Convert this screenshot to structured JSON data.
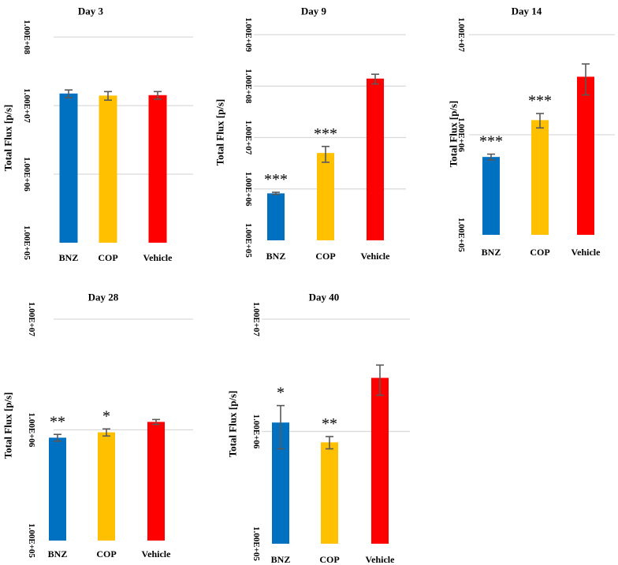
{
  "chart_data": [
    {
      "type": "bar",
      "title": "Day 3",
      "ylabel": "Total Flux [p/s]",
      "yscale": "log",
      "ylim": [
        100000,
        100000000
      ],
      "yticks": [
        "1.00E+05",
        "1.00E+06",
        "1.00E+07",
        "1.00E+08"
      ],
      "categories": [
        "BNZ",
        "COP",
        "Vehicle"
      ],
      "values": [
        15000000,
        14000000,
        14200000
      ],
      "errors": [
        1900000,
        2000000,
        1800000
      ],
      "colors": [
        "#0070c0",
        "#ffc000",
        "#ff0000"
      ],
      "annotations": [
        "",
        "",
        ""
      ]
    },
    {
      "type": "bar",
      "title": "Day 9",
      "ylabel": "Total Flux [p/s]",
      "yscale": "log",
      "ylim": [
        100000,
        1000000000
      ],
      "yticks": [
        "1.00E+05",
        "1.00E+06",
        "1.00E+07",
        "1.00E+08",
        "1.00E+09"
      ],
      "categories": [
        "BNZ",
        "COP",
        "Vehicle"
      ],
      "values": [
        820000,
        5000000,
        140000000
      ],
      "errors": [
        40000,
        1700000,
        30000000
      ],
      "colors": [
        "#0070c0",
        "#ffc000",
        "#ff0000"
      ],
      "annotations": [
        "***",
        "***",
        ""
      ]
    },
    {
      "type": "bar",
      "title": "Day 14",
      "ylabel": "Total Flux [p/s]",
      "yscale": "log",
      "ylim": [
        100000,
        10000000
      ],
      "yticks": [
        "1.00E+05",
        "1.00E+06",
        "1.00E+07"
      ],
      "categories": [
        "BNZ",
        "COP",
        "Vehicle"
      ],
      "values": [
        600000,
        1400000,
        3800000
      ],
      "errors": [
        40000,
        230000,
        1300000
      ],
      "colors": [
        "#0070c0",
        "#ffc000",
        "#ff0000"
      ],
      "annotations": [
        "***",
        "***",
        ""
      ]
    },
    {
      "type": "bar",
      "title": "Day 28",
      "ylabel": "Total Flux [p/s]",
      "yscale": "log",
      "ylim": [
        100000,
        10000000
      ],
      "yticks": [
        "1.00E+05",
        "1.00E+06",
        "1.00E+07"
      ],
      "categories": [
        "BNZ",
        "COP",
        "Vehicle"
      ],
      "values": [
        850000,
        950000,
        1180000
      ],
      "errors": [
        60000,
        70000,
        60000
      ],
      "colors": [
        "#0070c0",
        "#ffc000",
        "#ff0000"
      ],
      "annotations": [
        "**",
        "*",
        ""
      ]
    },
    {
      "type": "bar",
      "title": "Day 40",
      "ylabel": "Total Flux [p/s]",
      "yscale": "log",
      "ylim": [
        100000,
        10000000
      ],
      "yticks": [
        "1.00E+05",
        "1.00E+06",
        "1.00E+07"
      ],
      "categories": [
        "BNZ",
        "COP",
        "Vehicle"
      ],
      "values": [
        1200000,
        800000,
        3000000
      ],
      "errors": [
        500000,
        100000,
        900000
      ],
      "colors": [
        "#0070c0",
        "#ffc000",
        "#ff0000"
      ],
      "annotations": [
        "*",
        "**",
        ""
      ]
    }
  ]
}
